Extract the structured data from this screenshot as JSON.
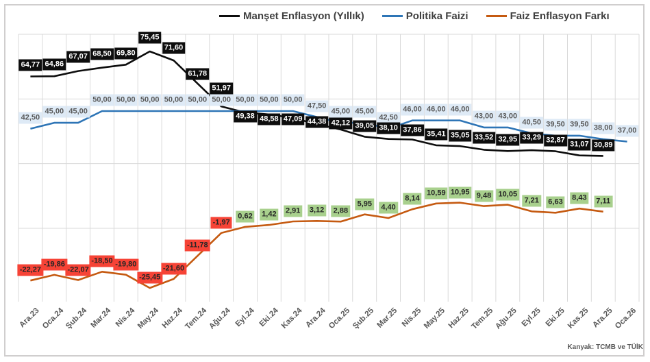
{
  "source_note": "Kanyak: TCMB ve TÜİK",
  "legend": [
    {
      "label": "Manşet Enflasyon (Yıllık)",
      "color": "#0d0d0d"
    },
    {
      "label": "Politika Faizi",
      "color": "#2E75B6"
    },
    {
      "label": "Faiz Enflasyon Farkı",
      "color": "#C55A11"
    }
  ],
  "chart_data": {
    "type": "line",
    "title": "",
    "xlabel": "",
    "ylabel": "",
    "ylim": [
      -31,
      83
    ],
    "grid": true,
    "legend_position": "top",
    "decimal_separator": ",",
    "categories": [
      "Ara.23",
      "Oca.24",
      "Şub.24",
      "Mar.24",
      "Nis.24",
      "May.24",
      "Haz.24",
      "Tem.24",
      "Ağu.24",
      "Eyl.24",
      "Eki.24",
      "Kas.24",
      "Ara.24",
      "Oca.25",
      "Şub.25",
      "Mar.25",
      "Nis.25",
      "May.25",
      "Haz.25",
      "Tem.25",
      "Ağu.25",
      "Eyl.25",
      "Eki.25",
      "Kas.25",
      "Ara.25",
      "Oca.26"
    ],
    "series": [
      {
        "name": "Manşet Enflasyon (Yıllık)",
        "color": "#0d0d0d",
        "label_style": "black",
        "values": [
          64.77,
          64.86,
          67.07,
          68.5,
          69.8,
          75.45,
          71.6,
          61.78,
          51.97,
          49.38,
          48.58,
          47.09,
          44.38,
          42.12,
          39.05,
          38.1,
          37.86,
          35.41,
          35.05,
          33.52,
          32.95,
          33.29,
          32.87,
          31.07,
          30.89,
          null
        ],
        "labels": [
          "64,77",
          "64,86",
          "67,07",
          "68,50",
          "69,80",
          "75,45",
          "71,60",
          "61,78",
          "51,97",
          "49,38",
          "48,58",
          "47,09",
          "44,38",
          "42,12",
          "39,05",
          "38,10",
          "37,86",
          "35,41",
          "35,05",
          "33,52",
          "32,95",
          "33,29",
          "32,87",
          "31,07",
          "30,89",
          null
        ]
      },
      {
        "name": "Politika Faizi",
        "color": "#2E75B6",
        "label_style": "blue",
        "values": [
          42.5,
          45.0,
          45.0,
          50.0,
          50.0,
          50.0,
          50.0,
          50.0,
          50.0,
          50.0,
          50.0,
          50.0,
          47.5,
          45.0,
          45.0,
          42.5,
          46.0,
          46.0,
          46.0,
          43.0,
          43.0,
          40.5,
          39.5,
          39.5,
          38.0,
          37.0
        ],
        "labels": [
          "42,50",
          "45,00",
          "45,00",
          "50,00",
          "50,00",
          "50,00",
          "50,00",
          "50,00",
          "50,00",
          "50,00",
          "50,00",
          "50,00",
          "47,50",
          "45,00",
          "45,00",
          "42,50",
          "46,00",
          "46,00",
          "46,00",
          "43,00",
          "43,00",
          "40,50",
          "39,50",
          "39,50",
          "38,00",
          "37,00"
        ]
      },
      {
        "name": "Faiz Enflasyon Farkı",
        "color": "#C55A11",
        "label_style": "diff",
        "positive_color": "#A8D08D",
        "negative_color": "#F64336",
        "values": [
          -22.27,
          -19.86,
          -22.07,
          -18.5,
          -19.8,
          -25.45,
          -21.6,
          -11.78,
          -1.97,
          0.62,
          1.42,
          2.91,
          3.12,
          2.88,
          5.95,
          4.4,
          8.14,
          10.59,
          10.95,
          9.48,
          10.05,
          7.21,
          6.63,
          8.43,
          7.11,
          null
        ],
        "labels": [
          "-22,27",
          "-19,86",
          "-22,07",
          "-18,50",
          "-19,80",
          "-25,45",
          "-21,60",
          "-11,78",
          "-1,97",
          "0,62",
          "1,42",
          "2,91",
          "3,12",
          "2,88",
          "5,95",
          "4,40",
          "8,14",
          "10,59",
          "10,95",
          "9,48",
          "10,05",
          "7,21",
          "6,63",
          "8,43",
          "7,11",
          null
        ]
      }
    ]
  }
}
